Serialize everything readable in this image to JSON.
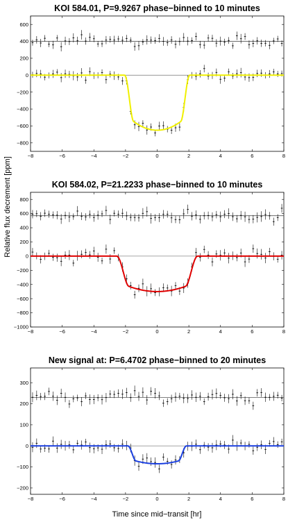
{
  "figure": {
    "ylabel": "Relative flux decrement [ppm]",
    "xlabel": "Time since mid−transit [hr]"
  },
  "chart_data": [
    {
      "type": "scatter",
      "title": "KOI 584.01, P=9.9267 phase−binned to 10 minutes",
      "xlim": [
        -8,
        8
      ],
      "ylim": [
        -900,
        700
      ],
      "xticks": [
        -8,
        -6,
        -4,
        -2,
        0,
        2,
        4,
        6,
        8
      ],
      "yticks": [
        -800,
        -600,
        -400,
        -200,
        0,
        200,
        400,
        600
      ],
      "offset": 400,
      "depth": 650,
      "half_duration": 2.05,
      "ingress": 0.55,
      "noise": 55,
      "errbar": 45,
      "model_color": "#f0f000",
      "grid": false
    },
    {
      "type": "scatter",
      "title": "KOI 584.02, P=21.2233 phase−binned to 10 minutes",
      "xlim": [
        -8,
        8
      ],
      "ylim": [
        -1000,
        900
      ],
      "xticks": [
        -8,
        -6,
        -4,
        -2,
        0,
        2,
        4,
        6,
        8
      ],
      "yticks": [
        -1000,
        -800,
        -600,
        -400,
        -200,
        0,
        200,
        400,
        600,
        800
      ],
      "offset": 570,
      "depth": 500,
      "half_duration": 2.55,
      "ingress": 0.75,
      "noise": 80,
      "errbar": 60,
      "model_color": "#e00000",
      "grid": false
    },
    {
      "type": "scatter",
      "title": "New signal at: P=6.4702 phase−binned to 20 minutes",
      "xlim": [
        -8,
        8
      ],
      "ylim": [
        -230,
        370
      ],
      "xticks": [
        -8,
        -6,
        -4,
        -2,
        0,
        2,
        4,
        6,
        8
      ],
      "yticks": [
        -200,
        -100,
        0,
        100,
        200,
        300
      ],
      "offset": 230,
      "depth": 85,
      "half_duration": 1.85,
      "ingress": 0.5,
      "noise": 25,
      "errbar": 20,
      "model_color": "#1a3fe0",
      "grid": false
    }
  ]
}
